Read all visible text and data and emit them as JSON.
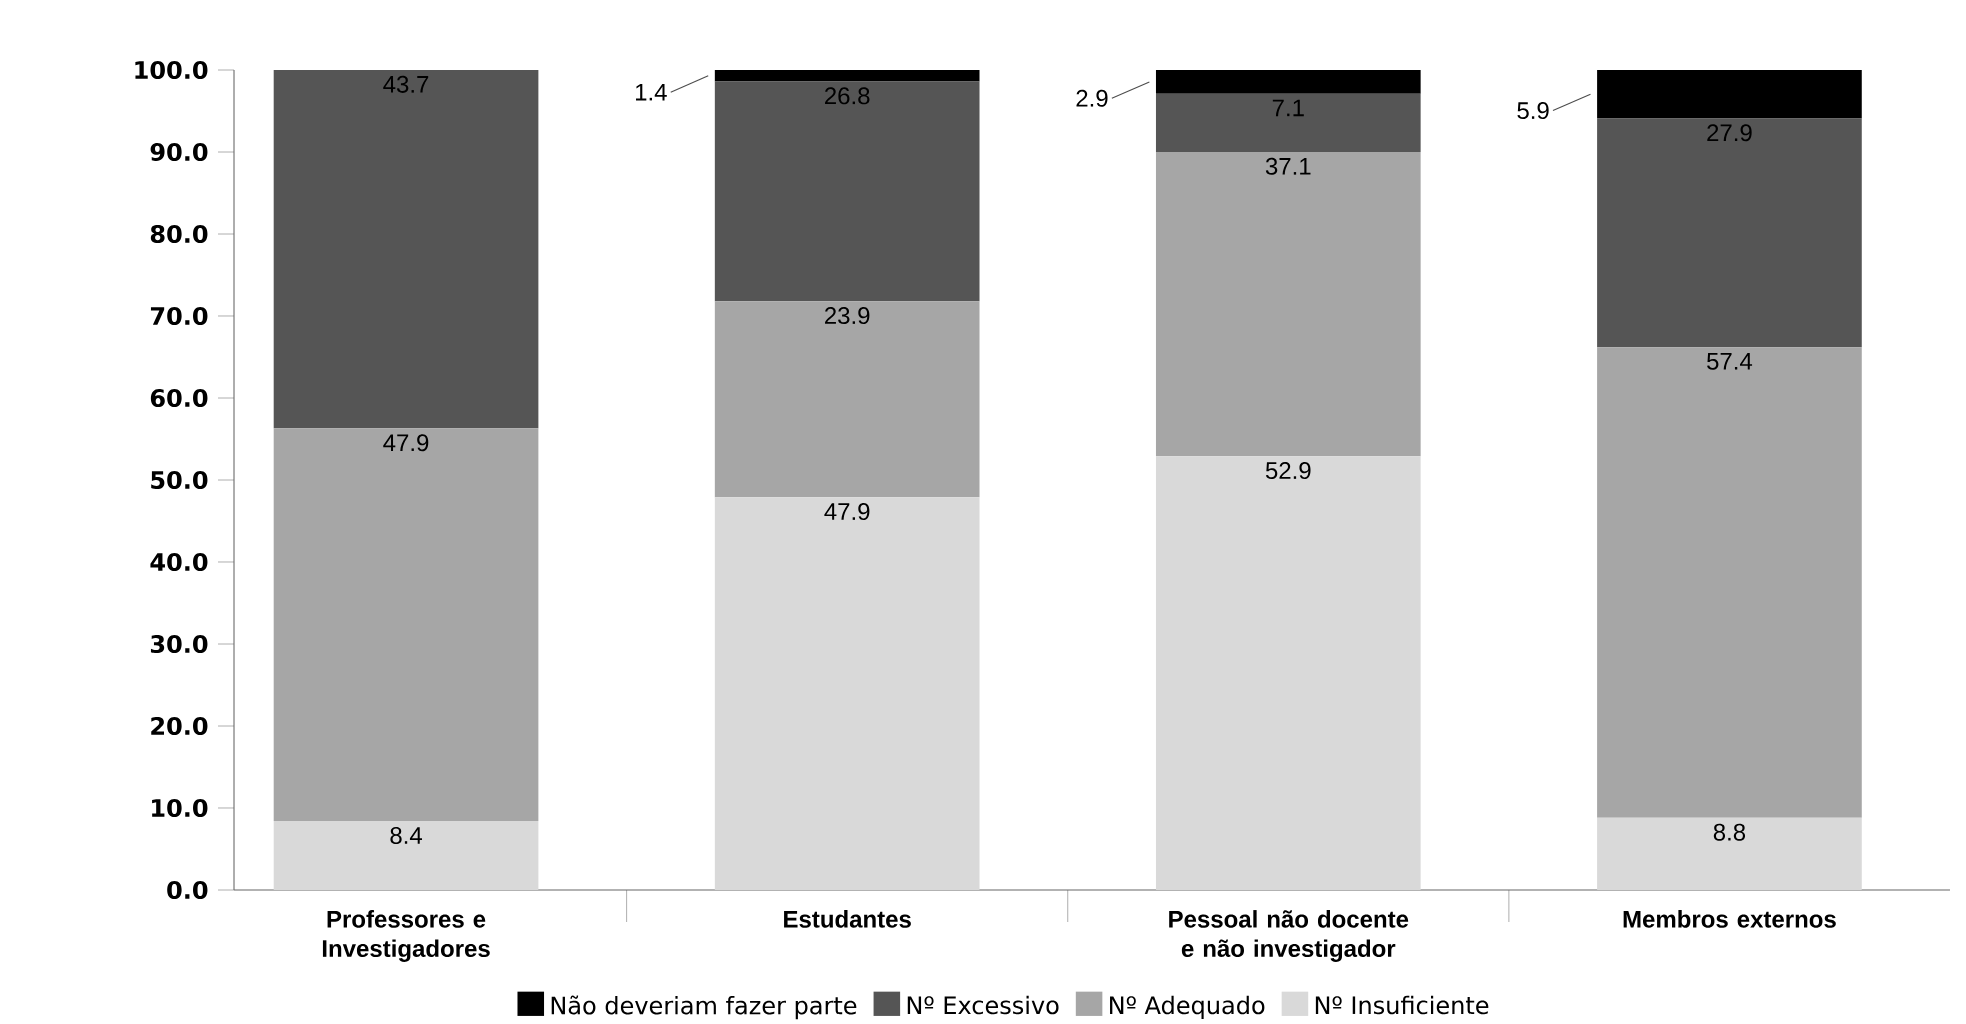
{
  "chart_data": {
    "type": "bar",
    "stacked": true,
    "legend": "bottom",
    "grid": false,
    "categories": [
      "Professores e Investigadores",
      "Estudantes",
      "Pessoal não docente e não investigador",
      "Membros externos"
    ],
    "ylim": [
      0,
      100
    ],
    "yticks": [
      {
        "value": 0,
        "label": "0.0"
      },
      {
        "value": 10,
        "label": "10.0"
      },
      {
        "value": 20,
        "label": "20.0"
      },
      {
        "value": 30,
        "label": "30.0"
      },
      {
        "value": 40,
        "label": "40.0"
      },
      {
        "value": 50,
        "label": "50.0"
      },
      {
        "value": 60,
        "label": "60.0"
      },
      {
        "value": 70,
        "label": "70.0"
      },
      {
        "value": 80,
        "label": "80.0"
      },
      {
        "value": 90,
        "label": "90.0"
      },
      {
        "value": 100,
        "label": "100.0"
      }
    ],
    "series": [
      {
        "name": "Nº Insuficiente",
        "color": "#d9d9d9",
        "values": [
          8.4,
          47.9,
          52.9,
          8.8
        ],
        "value_labels": [
          "8.4",
          "47.9",
          "52.9",
          "8.8"
        ]
      },
      {
        "name": "Nº Adequado",
        "color": "#a6a6a6",
        "values": [
          47.9,
          23.9,
          37.1,
          57.4
        ],
        "value_labels": [
          "47.9",
          "23.9",
          "37.1",
          "57.4"
        ]
      },
      {
        "name": "Nº Excessivo",
        "color": "#555555",
        "values": [
          43.7,
          26.8,
          7.1,
          27.9
        ],
        "value_labels": [
          "43.7",
          "26.8",
          "7.1",
          "27.9"
        ]
      },
      {
        "name": "Não deveriam fazer parte",
        "color": "#000000",
        "values": [
          null,
          1.4,
          2.9,
          5.9
        ],
        "value_labels": [
          null,
          "1.4",
          "2.9",
          "5.9"
        ]
      }
    ]
  }
}
